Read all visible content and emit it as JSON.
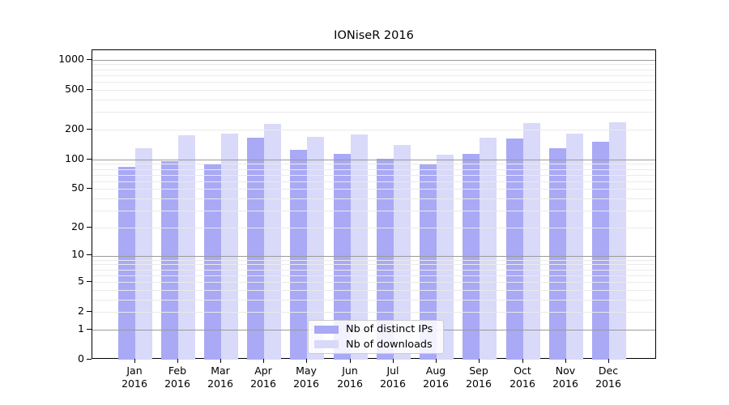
{
  "title": "IONiseR 2016",
  "legend": {
    "items": [
      {
        "label": "Nb of distinct IPs",
        "color_key": "bar_distinct_ips"
      },
      {
        "label": "Nb of downloads",
        "color_key": "bar_downloads"
      }
    ]
  },
  "colors": {
    "bar_distinct_ips": "#a9a9f5",
    "bar_downloads": "#d9d9f9",
    "grid_major": "#9a9a9a",
    "grid_minor": "#eaeaea",
    "spine": "#000000",
    "text": "#000000"
  },
  "chart_data": {
    "type": "bar",
    "title": "IONiseR 2016",
    "scale": "log10(1+value) on y axis, linear months on x axis",
    "categories": [
      "Jan 2016",
      "Feb 2016",
      "Mar 2016",
      "Apr 2016",
      "May 2016",
      "Jun 2016",
      "Jul 2016",
      "Aug 2016",
      "Sep 2016",
      "Oct 2016",
      "Nov 2016",
      "Dec 2016"
    ],
    "months": [
      "Jan",
      "Feb",
      "Mar",
      "Apr",
      "May",
      "Jun",
      "Jul",
      "Aug",
      "Sep",
      "Oct",
      "Nov",
      "Dec"
    ],
    "year_label": "2016",
    "series": [
      {
        "name": "Nb of distinct IPs",
        "color_key": "bar_distinct_ips",
        "values": [
          84,
          96,
          90,
          165,
          125,
          113,
          101,
          91,
          114,
          161,
          129,
          151
        ]
      },
      {
        "name": "Nb of downloads",
        "color_key": "bar_downloads",
        "values": [
          129,
          176,
          181,
          229,
          168,
          177,
          139,
          111,
          164,
          231,
          183,
          235
        ]
      }
    ],
    "xlabel": "",
    "ylabel": "",
    "y_axis": {
      "tick_values": [
        1000,
        500,
        200,
        100,
        50,
        20,
        10,
        5,
        2,
        1,
        0
      ],
      "major_grid_values": [
        1,
        10,
        100,
        1000
      ],
      "minor_grid_values": [
        2,
        3,
        4,
        5,
        6,
        7,
        8,
        9,
        20,
        30,
        40,
        50,
        60,
        70,
        80,
        90,
        200,
        300,
        400,
        500,
        600,
        700,
        800,
        900
      ],
      "range_top_value": 1260
    },
    "grid": "horizontal gridlines drawn above bars",
    "legend_position": "lower center, inside plot",
    "legend_entries": [
      "Nb of distinct IPs",
      "Nb of downloads"
    ]
  }
}
